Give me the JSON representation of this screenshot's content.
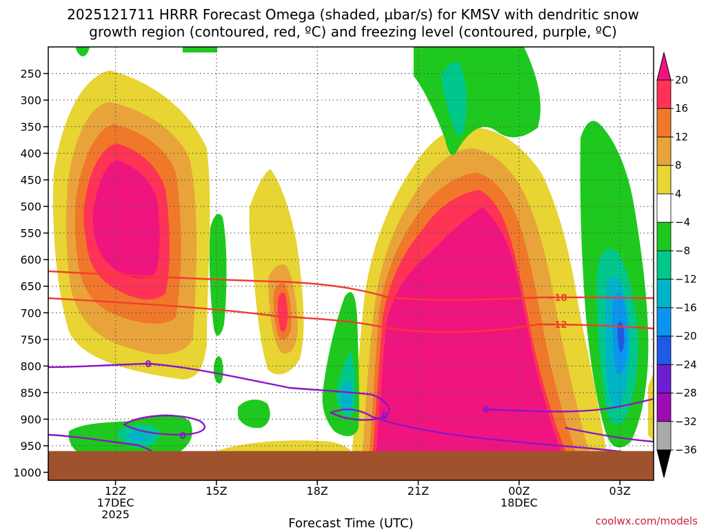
{
  "chart_data": {
    "type": "heatmap",
    "title_line1": "2025121711 HRRR Forecast Omega (shaded, µbar/s) for KMSV with dendritic snow",
    "title_line2": "growth region (contoured, red, ºC) and freezing level (contoured, purple, ºC)",
    "xlabel": "Forecast Time (UTC)",
    "credit": "coolwx.com/models",
    "x_ticks": [
      {
        "hour": 12,
        "lines": [
          "12Z",
          "17DEC",
          "2025"
        ]
      },
      {
        "hour": 15,
        "lines": [
          "15Z"
        ]
      },
      {
        "hour": 18,
        "lines": [
          "18Z"
        ]
      },
      {
        "hour": 21,
        "lines": [
          "21Z"
        ]
      },
      {
        "hour": 24,
        "lines": [
          "00Z",
          "18DEC"
        ]
      },
      {
        "hour": 27,
        "lines": [
          "03Z"
        ]
      }
    ],
    "x_range_hours": [
      10.0,
      28.0
    ],
    "y_ticks": [
      250,
      300,
      350,
      400,
      450,
      500,
      550,
      600,
      650,
      700,
      750,
      800,
      850,
      900,
      950,
      1000
    ],
    "y_range_hpa": [
      200,
      1015
    ],
    "ground_hpa": 960,
    "colorbar": {
      "labels": [
        "20",
        "16",
        "12",
        "8",
        "4",
        "−4",
        "−8",
        "−12",
        "−16",
        "−20",
        "−24",
        "−28",
        "−32",
        "−36"
      ],
      "colors": [
        "#ff3355",
        "#f0782a",
        "#e8a43a",
        "#e8d432",
        "#ffffff",
        "#1ec81e",
        "#00c88c",
        "#00b4c8",
        "#0a96f0",
        "#1e5ae6",
        "#6e1ed2",
        "#a00ab4",
        "#aaaaaa"
      ],
      "top_color": "#f0147f",
      "bottom_color": "#000000"
    },
    "contour_labels": {
      "dendritic_upper": "−18",
      "dendritic_lower": "−12",
      "freezing": "0"
    },
    "colors": {
      "omega_max": "#f0147f",
      "dendritic_contour": "#f03c32",
      "freezing_contour": "#8c14c8",
      "ground": "#a0522d",
      "grid": "#555555"
    }
  }
}
